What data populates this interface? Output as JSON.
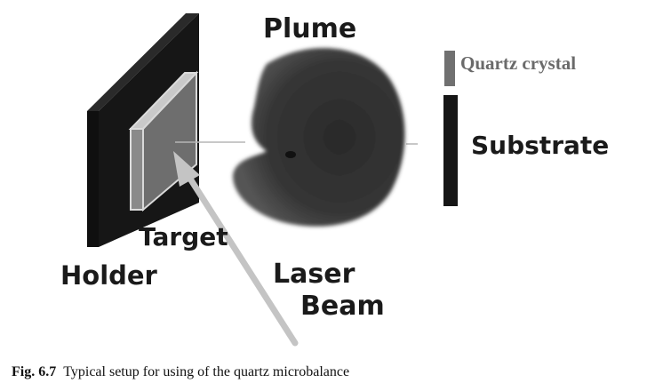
{
  "figure": {
    "labels": {
      "plume": "Plume",
      "quartz_crystal": "Quartz crystal",
      "substrate": "Substrate",
      "target": "Target",
      "holder": "Holder",
      "laser": "Laser",
      "beam": "Beam"
    },
    "colors": {
      "holder": "#161616",
      "target_fill": "#6e6e6e",
      "target_edge": "#d8d8d8",
      "plume": "#3c3c3c",
      "laser_beam": "#c4c4c4",
      "quartz_crystal": "#707070",
      "substrate": "#161616"
    }
  },
  "caption": {
    "number": "Fig. 6.7",
    "text": "Typical setup for using of the quartz microbalance"
  }
}
